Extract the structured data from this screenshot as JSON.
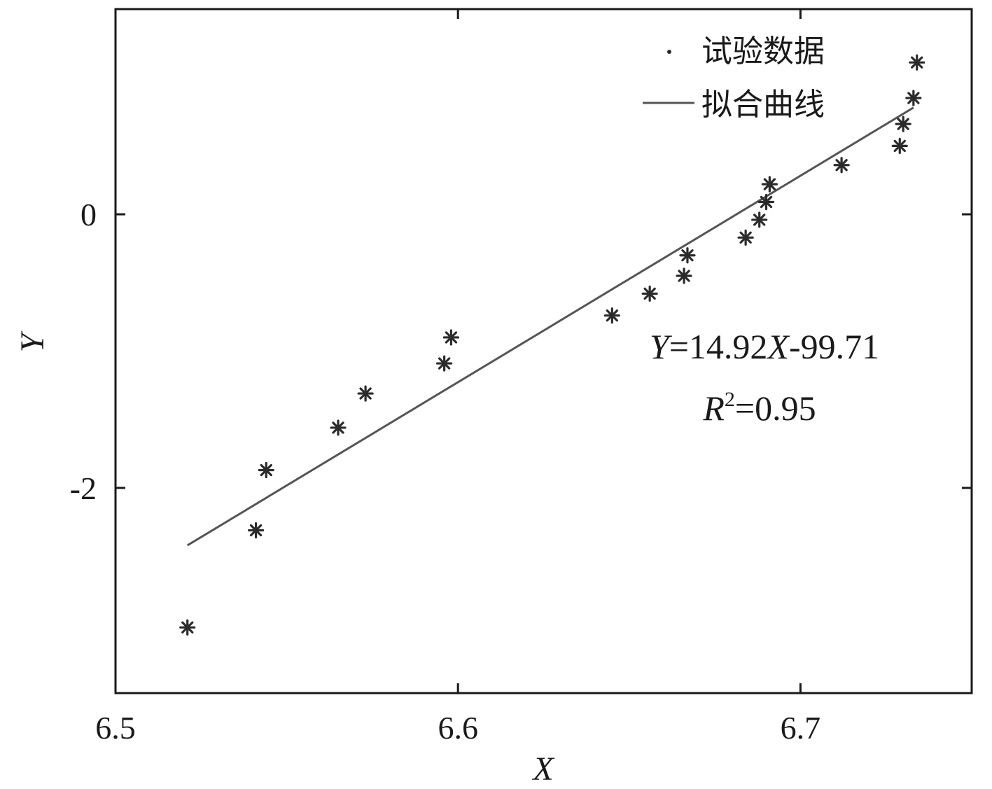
{
  "chart_data": {
    "type": "scatter",
    "title": "",
    "xlabel": "X",
    "ylabel": "Y",
    "xlim": [
      6.5,
      6.75
    ],
    "ylim": [
      -3.5,
      1.5
    ],
    "xticks": [
      6.5,
      6.6,
      6.7
    ],
    "xtick_labels": [
      "6.5",
      "6.6",
      "6.7"
    ],
    "yticks": [
      -2,
      0
    ],
    "ytick_labels": [
      "-2",
      "0"
    ],
    "grid": false,
    "legend_position": "top-right",
    "series": [
      {
        "name": "试验数据",
        "kind": "scatter",
        "marker": "asterisk",
        "x": [
          6.521,
          6.541,
          6.544,
          6.565,
          6.573,
          6.596,
          6.598,
          6.645,
          6.656,
          6.666,
          6.667,
          6.684,
          6.688,
          6.69,
          6.691,
          6.712,
          6.729,
          6.73,
          6.733,
          6.734
        ],
        "y": [
          -3.02,
          -2.31,
          -1.87,
          -1.56,
          -1.31,
          -1.09,
          -0.9,
          -0.74,
          -0.58,
          -0.45,
          -0.3,
          -0.17,
          -0.04,
          0.09,
          0.22,
          0.36,
          0.5,
          0.66,
          0.85,
          1.11
        ]
      },
      {
        "name": "拟合曲线",
        "kind": "line",
        "x": [
          6.521,
          6.733
        ],
        "y": [
          -2.42,
          0.78
        ]
      }
    ],
    "annotations": {
      "equation_y": "Y",
      "equation_mid": "=14.92",
      "equation_x": "X",
      "equation_tail": "-99.71",
      "r2_r": "R",
      "r2_sup": "2",
      "r2_tail": "=0.95"
    },
    "colors": {
      "axis": "#1a1a1a",
      "marker": "#2b2b2b",
      "line": "#555555"
    }
  }
}
